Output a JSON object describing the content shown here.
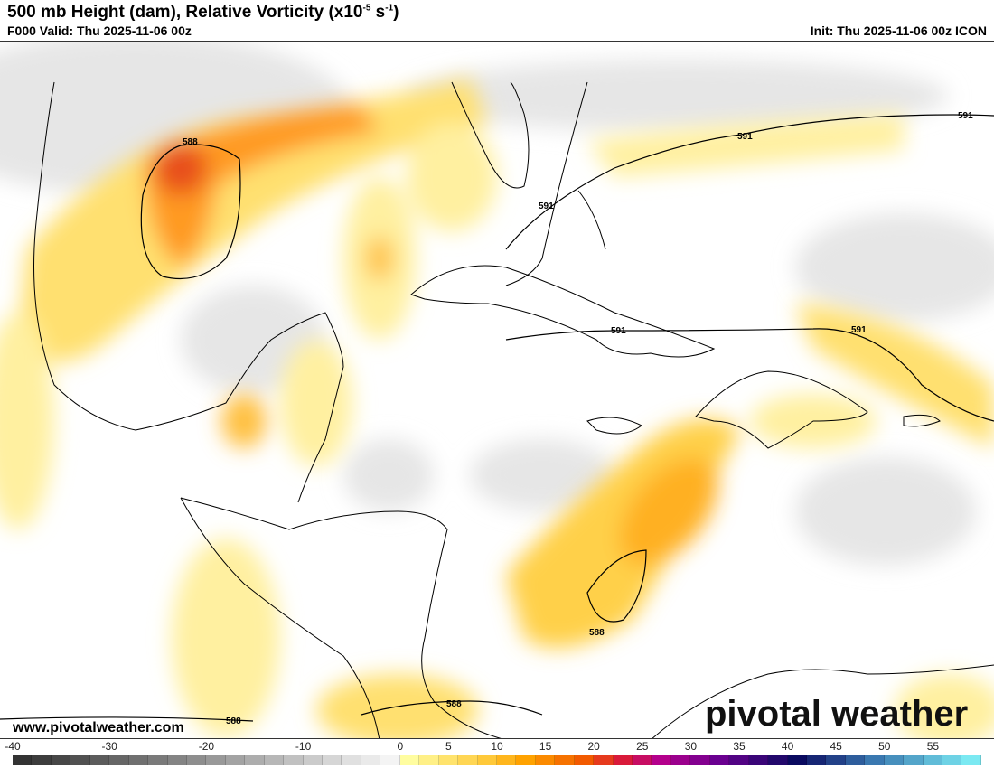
{
  "header": {
    "title_main": "500 mb Height (dam), Relative Vorticity (x10",
    "title_exp1": "-5",
    "title_mid": " s",
    "title_exp2": "-1",
    "title_end": ")",
    "valid": "F000 Valid: Thu 2025-11-06 00z",
    "init": "Init: Thu 2025-11-06 00z ICON"
  },
  "map": {
    "contour_labels": [
      "588",
      "591",
      "591",
      "591",
      "591",
      "591",
      "588",
      "588",
      "588"
    ]
  },
  "footer": {
    "website": "www.pivotalweather.com",
    "logo": "pivotal weather"
  },
  "colorbar": {
    "ticks": [
      "-40",
      "-30",
      "-20",
      "-10",
      "0",
      "5",
      "10",
      "15",
      "20",
      "25",
      "30",
      "35",
      "40",
      "45",
      "50",
      "55"
    ],
    "min": -40,
    "max": 60,
    "step": 2,
    "stops": [
      [
        -40,
        "#333333"
      ],
      [
        -2,
        "#f4f4f4"
      ],
      [
        0,
        "#fffda0"
      ],
      [
        8,
        "#ffc93a"
      ],
      [
        12,
        "#ffa200"
      ],
      [
        18,
        "#f25a00"
      ],
      [
        22,
        "#d91a3a"
      ],
      [
        26,
        "#b4008c"
      ],
      [
        32,
        "#6a0090"
      ],
      [
        40,
        "#0a0a60"
      ],
      [
        48,
        "#3a78b0"
      ],
      [
        60,
        "#88ffff"
      ]
    ]
  }
}
